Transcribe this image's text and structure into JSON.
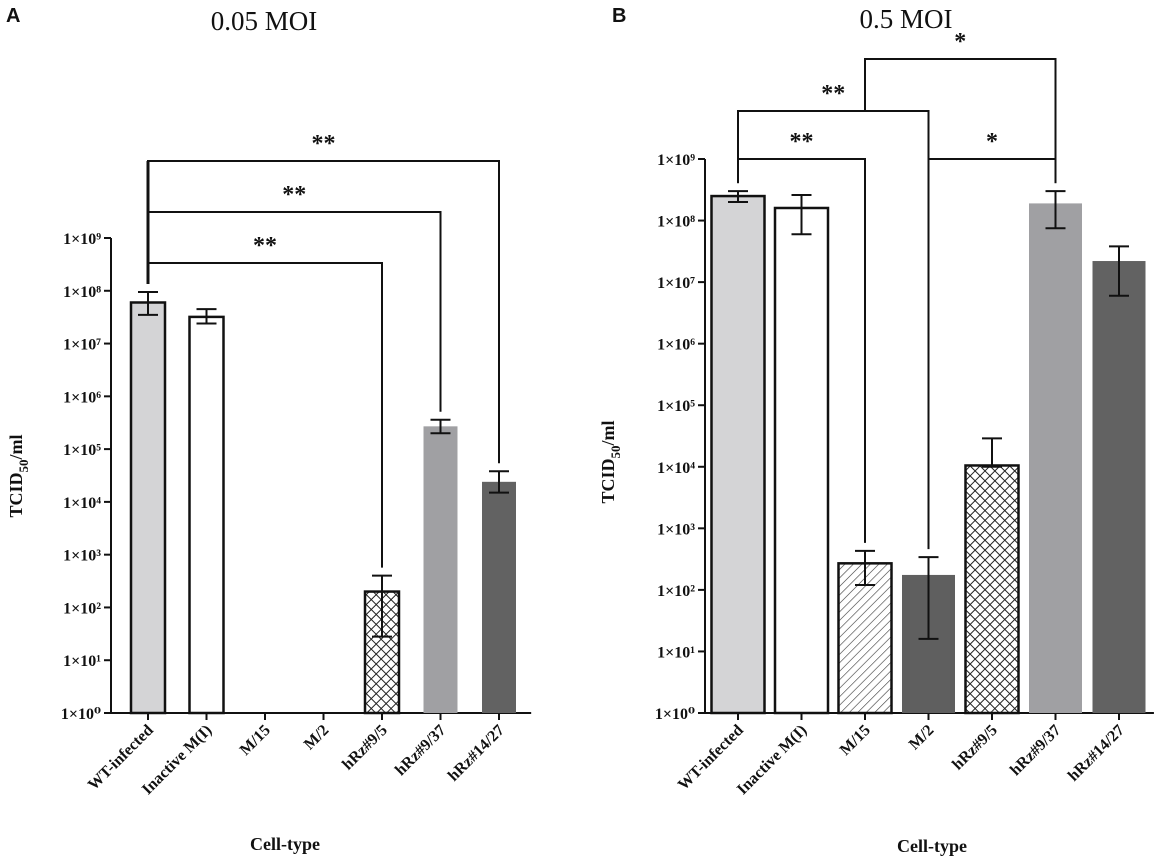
{
  "panels": [
    {
      "letter": "A",
      "title": "0.05 MOI",
      "xlabel": "Cell-type",
      "ylabel_main": "TCID",
      "ylabel_sub": "50",
      "ylabel_tail": "/ml",
      "significance": [
        {
          "from": 0,
          "to": 6,
          "label": "**"
        },
        {
          "from": 0,
          "to": 5,
          "label": "**"
        },
        {
          "from": 0,
          "to": 4,
          "label": "**"
        }
      ]
    },
    {
      "letter": "B",
      "title": "0.5 MOI",
      "xlabel": "Cell-type",
      "ylabel_main": "TCID",
      "ylabel_sub": "50",
      "ylabel_tail": "/ml",
      "significance": [
        {
          "from": 2,
          "to": 5,
          "label": "*"
        },
        {
          "from": 0,
          "to": 3,
          "label": "**"
        },
        {
          "from": 0,
          "to": 2,
          "label": "**"
        },
        {
          "from": 3,
          "to": 5,
          "label": "*"
        }
      ]
    }
  ],
  "chart_data": [
    {
      "type": "bar",
      "title": "0.05 MOI",
      "xlabel": "Cell-type",
      "ylabel": "TCID50/ml",
      "yscale": "log",
      "ylim": [
        1,
        1000000000
      ],
      "ytick_labels": [
        "1×10⁰",
        "1×10¹",
        "1×10²",
        "1×10³",
        "1×10⁴",
        "1×10⁵",
        "1×10⁶",
        "1×10⁷",
        "1×10⁸",
        "1×10⁹"
      ],
      "categories": [
        "WT-infected",
        "Inactive M(I)",
        "M/15",
        "M/2",
        "hRz#9/5",
        "hRz#9/37",
        "hRz#14/27"
      ],
      "values": [
        60000000,
        32000000,
        null,
        null,
        200,
        270000,
        24000
      ],
      "error_low": [
        35000000,
        24000000,
        null,
        null,
        28,
        200000,
        15000
      ],
      "error_high": [
        95000000,
        45000000,
        null,
        null,
        400,
        360000,
        38000
      ]
    },
    {
      "type": "bar",
      "title": "0.5 MOI",
      "xlabel": "Cell-type",
      "ylabel": "TCID50/ml",
      "yscale": "log",
      "ylim": [
        1,
        1000000000
      ],
      "ytick_labels": [
        "1×10⁰",
        "1×10¹",
        "1×10²",
        "1×10³",
        "1×10⁴",
        "1×10⁵",
        "1×10⁶",
        "1×10⁷",
        "1×10⁸",
        "1×10⁹"
      ],
      "categories": [
        "WT-infected",
        "Inactive M(I)",
        "M/15",
        "M/2",
        "hRz#9/5",
        "hRz#9/37",
        "hRz#14/27"
      ],
      "values": [
        250000000,
        160000000,
        270,
        175,
        10500,
        190000000,
        22000000
      ],
      "error_low": [
        200000000,
        60000000,
        120,
        16,
        10000,
        75000000,
        6000000
      ],
      "error_high": [
        300000000,
        260000000,
        430,
        340,
        29000,
        300000000,
        38000000
      ]
    }
  ],
  "styles": {
    "fills": [
      "#d4d4d6",
      "#ffffff",
      "pattern-diag",
      "#5f5f5f",
      "pattern-check",
      "#a0a0a3",
      "#626262"
    ],
    "outlined": [
      true,
      true,
      true,
      false,
      true,
      false,
      false
    ],
    "axis_color": "#111111"
  }
}
